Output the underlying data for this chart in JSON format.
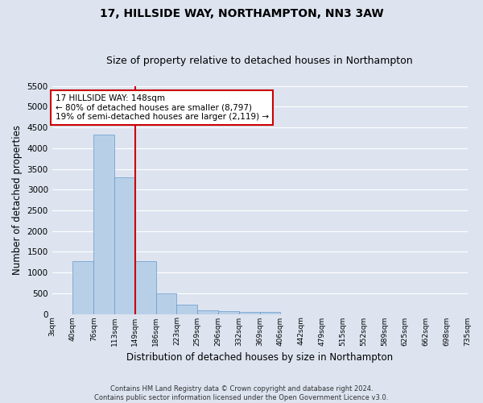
{
  "title": "17, HILLSIDE WAY, NORTHAMPTON, NN3 3AW",
  "subtitle": "Size of property relative to detached houses in Northampton",
  "xlabel": "Distribution of detached houses by size in Northampton",
  "ylabel": "Number of detached properties",
  "bin_labels": [
    "3sqm",
    "40sqm",
    "76sqm",
    "113sqm",
    "149sqm",
    "186sqm",
    "223sqm",
    "259sqm",
    "296sqm",
    "332sqm",
    "369sqm",
    "406sqm",
    "442sqm",
    "479sqm",
    "515sqm",
    "552sqm",
    "589sqm",
    "625sqm",
    "662sqm",
    "698sqm",
    "735sqm"
  ],
  "bar_heights": [
    0,
    1270,
    4330,
    3300,
    1280,
    490,
    220,
    90,
    70,
    55,
    55,
    0,
    0,
    0,
    0,
    0,
    0,
    0,
    0,
    0,
    0
  ],
  "bar_color": "#b8cfe8",
  "bar_edge_color": "#6699cc",
  "vline_x": 4,
  "vline_color": "#cc0000",
  "annotation_text": "17 HILLSIDE WAY: 148sqm\n← 80% of detached houses are smaller (8,797)\n19% of semi-detached houses are larger (2,119) →",
  "annotation_box_color": "#ffffff",
  "annotation_box_edge": "#cc0000",
  "ylim": [
    0,
    5500
  ],
  "yticks": [
    0,
    500,
    1000,
    1500,
    2000,
    2500,
    3000,
    3500,
    4000,
    4500,
    5000,
    5500
  ],
  "background_color": "#dde4f0",
  "grid_color": "#ffffff",
  "footer": "Contains HM Land Registry data © Crown copyright and database right 2024.\nContains public sector information licensed under the Open Government Licence v3.0.",
  "title_fontsize": 10,
  "subtitle_fontsize": 9,
  "xlabel_fontsize": 8.5,
  "ylabel_fontsize": 8.5,
  "annotation_fontsize": 7.5
}
